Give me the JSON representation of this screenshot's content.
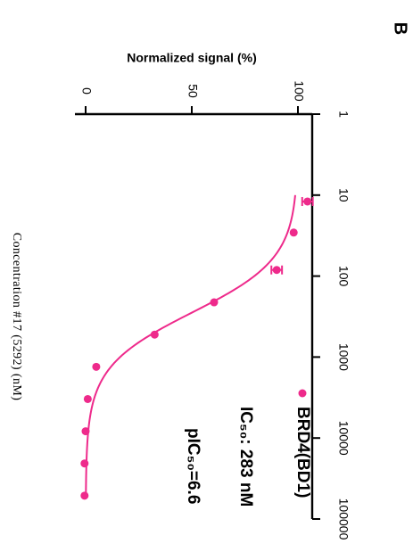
{
  "panel_label": "B",
  "colors": {
    "series": "#ee2a8b",
    "axis": "#000000"
  },
  "chart_data": {
    "type": "scatter",
    "orientation": "rotated-90-clockwise",
    "xlabel": "Concentration #17 (5292) (nM)",
    "ylabel": "Normalized signal (%)",
    "x_scale": "log",
    "xlim": [
      1,
      100000
    ],
    "ylim": [
      0,
      100
    ],
    "x_ticks": [
      1,
      10,
      100,
      1000,
      10000,
      100000
    ],
    "x_tick_labels": [
      "1",
      "10",
      "100",
      "1000",
      "10000",
      "100000"
    ],
    "y_ticks": [
      0,
      50,
      100
    ],
    "y_tick_labels": [
      "0",
      "50",
      "100"
    ],
    "grid": false,
    "legend_position": "bottom-right",
    "series": [
      {
        "name": "BRD4(BD1)",
        "points": [
          {
            "x": 12,
            "y": 104.5,
            "err": 2.5
          },
          {
            "x": 29,
            "y": 98
          },
          {
            "x": 84,
            "y": 90,
            "err": 2.5
          },
          {
            "x": 211,
            "y": 60.5
          },
          {
            "x": 528,
            "y": 32.5
          },
          {
            "x": 1320,
            "y": 5
          },
          {
            "x": 3300,
            "y": 1
          },
          {
            "x": 8250,
            "y": 0
          },
          {
            "x": 20600,
            "y": -0.5
          },
          {
            "x": 51500,
            "y": -0.5
          }
        ],
        "fit": {
          "model": "four-parameter logistic",
          "top": 100,
          "bottom": 0,
          "ic50": 283,
          "hill": 1.3,
          "x_range": [
            10,
            51500
          ]
        }
      }
    ],
    "annotations": [
      {
        "text": "IC₅₀: 283 nM"
      },
      {
        "text": "pIC₅₀=6.6"
      }
    ]
  }
}
